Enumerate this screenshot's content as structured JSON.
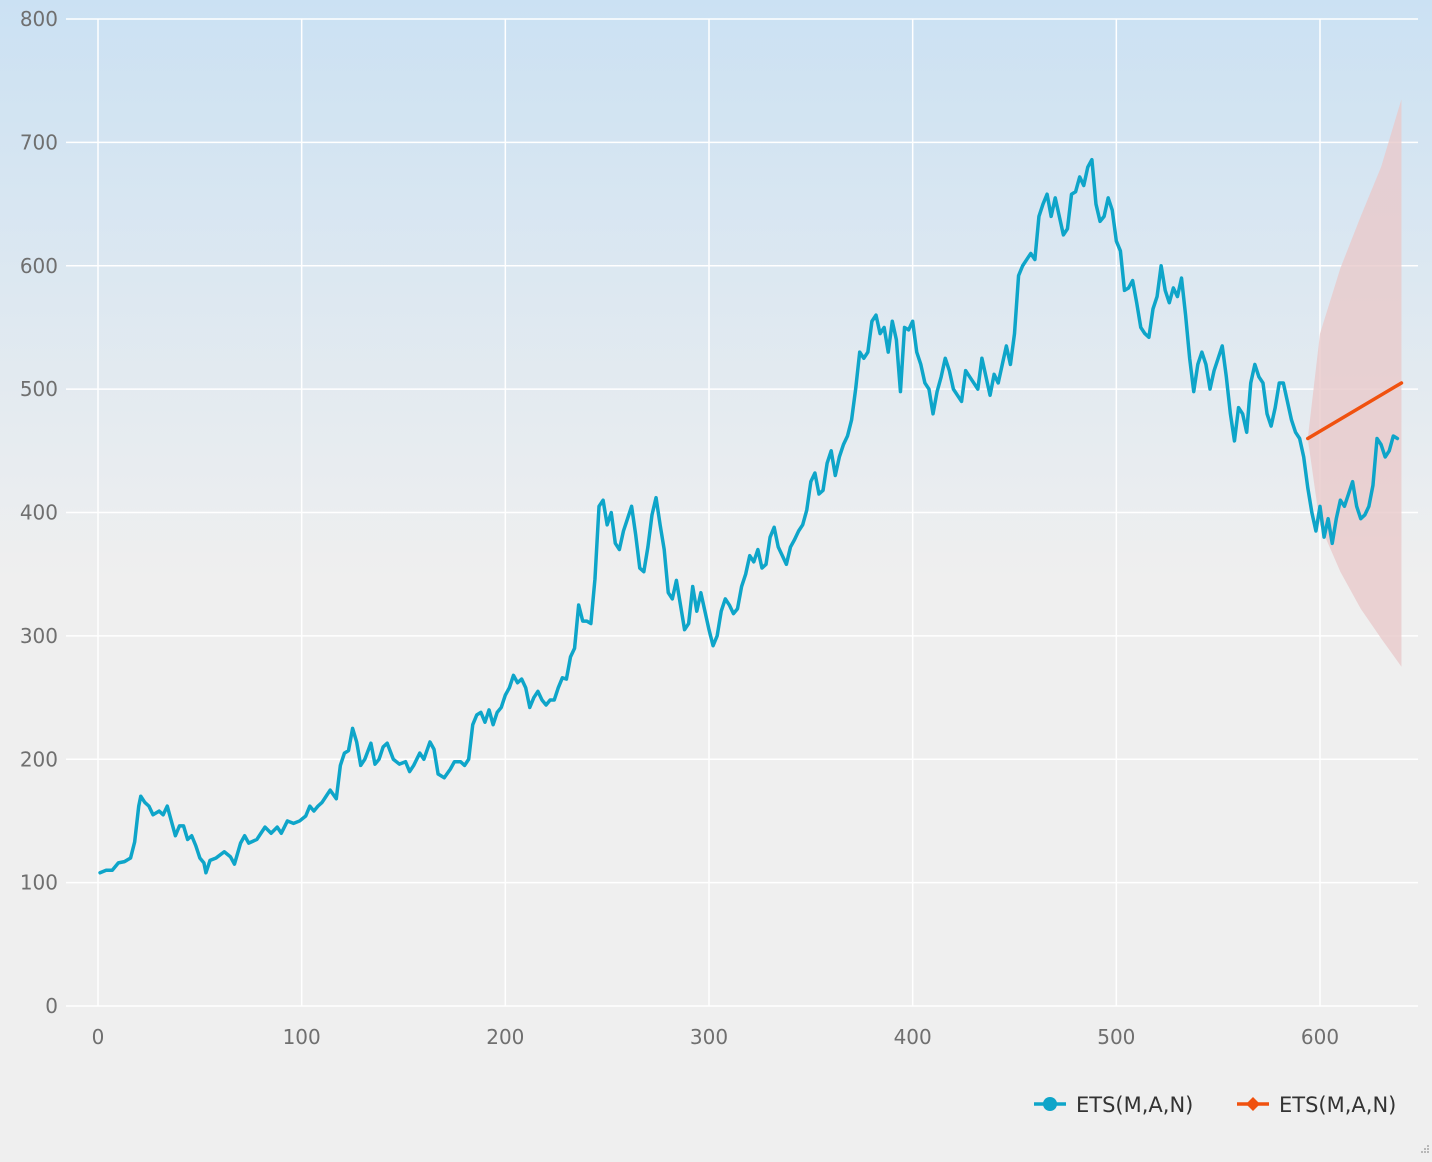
{
  "chart_data": {
    "type": "line",
    "title": "",
    "xlabel": "",
    "ylabel": "",
    "xlim": [
      -5,
      648
    ],
    "ylim": [
      0,
      800
    ],
    "x_ticks": [
      0,
      100,
      200,
      300,
      400,
      500,
      600
    ],
    "y_ticks": [
      0,
      100,
      200,
      300,
      400,
      500,
      600,
      700,
      800
    ],
    "grid": true,
    "legend_position": "bottom-right",
    "background_gradient": [
      "#cbe1f3",
      "#efefef"
    ],
    "series": [
      {
        "name": "ETS(M,A,N)",
        "kind": "observed",
        "color": "#0ea5c9",
        "marker": "circle",
        "points": [
          [
            1,
            108
          ],
          [
            4,
            110
          ],
          [
            7,
            110
          ],
          [
            10,
            116
          ],
          [
            13,
            117
          ],
          [
            16,
            120
          ],
          [
            18,
            133
          ],
          [
            20,
            162
          ],
          [
            21,
            170
          ],
          [
            23,
            165
          ],
          [
            25,
            162
          ],
          [
            27,
            155
          ],
          [
            30,
            158
          ],
          [
            32,
            155
          ],
          [
            34,
            162
          ],
          [
            36,
            150
          ],
          [
            38,
            138
          ],
          [
            40,
            146
          ],
          [
            42,
            146
          ],
          [
            44,
            135
          ],
          [
            46,
            138
          ],
          [
            48,
            130
          ],
          [
            50,
            120
          ],
          [
            52,
            116
          ],
          [
            53,
            108
          ],
          [
            55,
            118
          ],
          [
            58,
            120
          ],
          [
            62,
            125
          ],
          [
            65,
            121
          ],
          [
            67,
            115
          ],
          [
            70,
            132
          ],
          [
            72,
            138
          ],
          [
            74,
            132
          ],
          [
            78,
            135
          ],
          [
            80,
            140
          ],
          [
            82,
            145
          ],
          [
            85,
            140
          ],
          [
            88,
            145
          ],
          [
            90,
            140
          ],
          [
            93,
            150
          ],
          [
            96,
            148
          ],
          [
            99,
            150
          ],
          [
            102,
            154
          ],
          [
            104,
            162
          ],
          [
            106,
            158
          ],
          [
            108,
            162
          ],
          [
            110,
            165
          ],
          [
            112,
            170
          ],
          [
            114,
            175
          ],
          [
            117,
            168
          ],
          [
            119,
            195
          ],
          [
            121,
            205
          ],
          [
            123,
            207
          ],
          [
            125,
            225
          ],
          [
            127,
            214
          ],
          [
            129,
            195
          ],
          [
            131,
            200
          ],
          [
            134,
            213
          ],
          [
            136,
            196
          ],
          [
            138,
            200
          ],
          [
            140,
            210
          ],
          [
            142,
            213
          ],
          [
            145,
            200
          ],
          [
            148,
            196
          ],
          [
            151,
            198
          ],
          [
            153,
            190
          ],
          [
            155,
            195
          ],
          [
            158,
            205
          ],
          [
            160,
            200
          ],
          [
            163,
            214
          ],
          [
            165,
            208
          ],
          [
            167,
            188
          ],
          [
            170,
            185
          ],
          [
            173,
            192
          ],
          [
            175,
            198
          ],
          [
            178,
            198
          ],
          [
            180,
            195
          ],
          [
            182,
            200
          ],
          [
            184,
            228
          ],
          [
            186,
            236
          ],
          [
            188,
            238
          ],
          [
            190,
            230
          ],
          [
            192,
            240
          ],
          [
            194,
            228
          ],
          [
            196,
            238
          ],
          [
            198,
            242
          ],
          [
            200,
            252
          ],
          [
            202,
            258
          ],
          [
            204,
            268
          ],
          [
            206,
            262
          ],
          [
            208,
            265
          ],
          [
            210,
            258
          ],
          [
            212,
            242
          ],
          [
            214,
            250
          ],
          [
            216,
            255
          ],
          [
            218,
            248
          ],
          [
            220,
            244
          ],
          [
            222,
            248
          ],
          [
            224,
            248
          ],
          [
            226,
            258
          ],
          [
            228,
            266
          ],
          [
            230,
            265
          ],
          [
            232,
            283
          ],
          [
            234,
            290
          ],
          [
            236,
            325
          ],
          [
            238,
            312
          ],
          [
            240,
            312
          ],
          [
            242,
            310
          ],
          [
            244,
            346
          ],
          [
            246,
            405
          ],
          [
            248,
            410
          ],
          [
            250,
            390
          ],
          [
            252,
            400
          ],
          [
            254,
            375
          ],
          [
            256,
            370
          ],
          [
            258,
            385
          ],
          [
            260,
            395
          ],
          [
            262,
            405
          ],
          [
            264,
            382
          ],
          [
            266,
            355
          ],
          [
            268,
            352
          ],
          [
            270,
            372
          ],
          [
            272,
            398
          ],
          [
            274,
            412
          ],
          [
            276,
            390
          ],
          [
            278,
            370
          ],
          [
            280,
            335
          ],
          [
            282,
            330
          ],
          [
            284,
            345
          ],
          [
            286,
            325
          ],
          [
            288,
            305
          ],
          [
            290,
            310
          ],
          [
            292,
            340
          ],
          [
            294,
            320
          ],
          [
            296,
            335
          ],
          [
            298,
            320
          ],
          [
            300,
            305
          ],
          [
            302,
            292
          ],
          [
            304,
            300
          ],
          [
            306,
            320
          ],
          [
            308,
            330
          ],
          [
            310,
            325
          ],
          [
            312,
            318
          ],
          [
            314,
            322
          ],
          [
            316,
            340
          ],
          [
            318,
            350
          ],
          [
            320,
            365
          ],
          [
            322,
            360
          ],
          [
            324,
            370
          ],
          [
            326,
            355
          ],
          [
            328,
            358
          ],
          [
            330,
            380
          ],
          [
            332,
            388
          ],
          [
            334,
            372
          ],
          [
            336,
            365
          ],
          [
            338,
            358
          ],
          [
            340,
            372
          ],
          [
            342,
            378
          ],
          [
            344,
            385
          ],
          [
            346,
            390
          ],
          [
            348,
            402
          ],
          [
            350,
            425
          ],
          [
            352,
            432
          ],
          [
            354,
            415
          ],
          [
            356,
            418
          ],
          [
            358,
            440
          ],
          [
            360,
            450
          ],
          [
            362,
            430
          ],
          [
            364,
            445
          ],
          [
            366,
            455
          ],
          [
            368,
            462
          ],
          [
            370,
            475
          ],
          [
            372,
            500
          ],
          [
            374,
            530
          ],
          [
            376,
            525
          ],
          [
            378,
            530
          ],
          [
            380,
            555
          ],
          [
            382,
            560
          ],
          [
            384,
            545
          ],
          [
            386,
            550
          ],
          [
            388,
            530
          ],
          [
            390,
            555
          ],
          [
            392,
            540
          ],
          [
            394,
            498
          ],
          [
            396,
            550
          ],
          [
            398,
            548
          ],
          [
            400,
            555
          ],
          [
            402,
            530
          ],
          [
            404,
            520
          ],
          [
            406,
            505
          ],
          [
            408,
            500
          ],
          [
            410,
            480
          ],
          [
            412,
            498
          ],
          [
            414,
            510
          ],
          [
            416,
            525
          ],
          [
            418,
            515
          ],
          [
            420,
            500
          ],
          [
            422,
            495
          ],
          [
            424,
            490
          ],
          [
            426,
            515
          ],
          [
            428,
            510
          ],
          [
            430,
            505
          ],
          [
            432,
            500
          ],
          [
            434,
            525
          ],
          [
            436,
            510
          ],
          [
            438,
            495
          ],
          [
            440,
            512
          ],
          [
            442,
            505
          ],
          [
            444,
            520
          ],
          [
            446,
            535
          ],
          [
            448,
            520
          ],
          [
            450,
            545
          ],
          [
            452,
            592
          ],
          [
            454,
            600
          ],
          [
            456,
            605
          ],
          [
            458,
            610
          ],
          [
            460,
            605
          ],
          [
            462,
            640
          ],
          [
            464,
            650
          ],
          [
            466,
            658
          ],
          [
            468,
            640
          ],
          [
            470,
            655
          ],
          [
            472,
            640
          ],
          [
            474,
            625
          ],
          [
            476,
            630
          ],
          [
            478,
            658
          ],
          [
            480,
            660
          ],
          [
            482,
            672
          ],
          [
            484,
            665
          ],
          [
            486,
            680
          ],
          [
            488,
            686
          ],
          [
            490,
            650
          ],
          [
            492,
            636
          ],
          [
            494,
            640
          ],
          [
            496,
            655
          ],
          [
            498,
            645
          ],
          [
            500,
            620
          ],
          [
            502,
            612
          ],
          [
            504,
            580
          ],
          [
            506,
            582
          ],
          [
            508,
            588
          ],
          [
            510,
            570
          ],
          [
            512,
            550
          ],
          [
            514,
            545
          ],
          [
            516,
            542
          ],
          [
            518,
            565
          ],
          [
            520,
            575
          ],
          [
            522,
            600
          ],
          [
            524,
            580
          ],
          [
            526,
            570
          ],
          [
            528,
            582
          ],
          [
            530,
            575
          ],
          [
            532,
            590
          ],
          [
            534,
            560
          ],
          [
            536,
            525
          ],
          [
            538,
            498
          ],
          [
            540,
            520
          ],
          [
            542,
            530
          ],
          [
            544,
            520
          ],
          [
            546,
            500
          ],
          [
            548,
            515
          ],
          [
            550,
            525
          ],
          [
            552,
            535
          ],
          [
            554,
            510
          ],
          [
            556,
            480
          ],
          [
            558,
            458
          ],
          [
            560,
            485
          ],
          [
            562,
            480
          ],
          [
            564,
            465
          ],
          [
            566,
            505
          ],
          [
            568,
            520
          ],
          [
            570,
            510
          ],
          [
            572,
            505
          ],
          [
            574,
            480
          ],
          [
            576,
            470
          ],
          [
            578,
            485
          ],
          [
            580,
            505
          ],
          [
            582,
            505
          ],
          [
            584,
            490
          ],
          [
            586,
            475
          ],
          [
            588,
            465
          ],
          [
            590,
            460
          ],
          [
            592,
            445
          ],
          [
            594,
            420
          ],
          [
            596,
            400
          ],
          [
            598,
            385
          ],
          [
            600,
            405
          ],
          [
            602,
            380
          ],
          [
            604,
            395
          ],
          [
            606,
            375
          ],
          [
            608,
            395
          ],
          [
            610,
            410
          ],
          [
            612,
            405
          ],
          [
            614,
            415
          ],
          [
            616,
            425
          ],
          [
            618,
            405
          ],
          [
            620,
            395
          ],
          [
            622,
            398
          ],
          [
            624,
            405
          ],
          [
            626,
            422
          ],
          [
            628,
            460
          ],
          [
            630,
            455
          ],
          [
            632,
            445
          ],
          [
            634,
            450
          ],
          [
            636,
            462
          ],
          [
            638,
            460
          ]
        ]
      },
      {
        "name": "ETS(M,A,N)",
        "kind": "forecast",
        "color": "#f0510f",
        "marker": "diamond",
        "points": [
          [
            594,
            460
          ],
          [
            640,
            505
          ]
        ],
        "interval_color": "#e8c9cb",
        "interval_upper": [
          [
            594,
            460
          ],
          [
            600,
            545
          ],
          [
            610,
            598
          ],
          [
            620,
            640
          ],
          [
            630,
            680
          ],
          [
            640,
            735
          ]
        ],
        "interval_lower": [
          [
            594,
            460
          ],
          [
            600,
            390
          ],
          [
            610,
            352
          ],
          [
            620,
            322
          ],
          [
            630,
            298
          ],
          [
            640,
            275
          ]
        ]
      }
    ]
  }
}
